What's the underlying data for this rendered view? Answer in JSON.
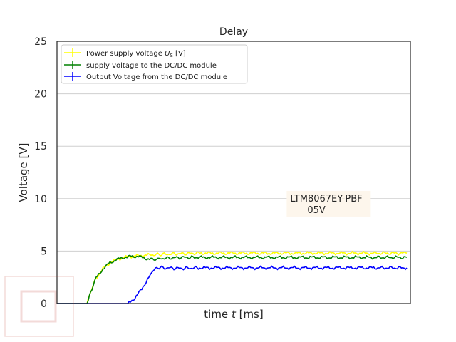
{
  "chart_data": {
    "type": "line",
    "title": "Delay",
    "xlabel_prefix": "time ",
    "xlabel_var": "t",
    "xlabel_suffix": " [ms]",
    "ylabel": "Voltage [V]",
    "xlim": [
      0,
      100
    ],
    "ylim": [
      0,
      25
    ],
    "yticks": [
      0,
      5,
      10,
      15,
      20,
      25
    ],
    "grid": "horizontal",
    "legend_position": "top-left",
    "series": [
      {
        "name_prefix": "Power supply voltage  ",
        "name_var": "U",
        "name_sub": "S",
        "name_suffix": " [V]",
        "color": "#ffff00",
        "x": [
          0,
          8.5,
          9.5,
          11,
          13,
          15,
          17,
          19,
          21,
          23,
          25,
          27,
          30,
          35,
          40,
          50,
          60,
          70,
          80,
          90,
          99
        ],
        "y": [
          0,
          0,
          1.1,
          2.4,
          3.3,
          3.9,
          4.2,
          4.4,
          4.5,
          4.55,
          4.6,
          4.65,
          4.7,
          4.75,
          4.8,
          4.8,
          4.8,
          4.8,
          4.8,
          4.8,
          4.8
        ]
      },
      {
        "name": "supply voltage to the DC/DC module",
        "color": "#008000",
        "x": [
          0,
          8.5,
          9.5,
          11,
          13,
          15,
          17,
          19,
          21,
          23,
          25,
          27,
          30,
          35,
          40,
          50,
          60,
          70,
          80,
          90,
          99
        ],
        "y": [
          0,
          0,
          1.1,
          2.4,
          3.3,
          3.9,
          4.2,
          4.4,
          4.5,
          4.5,
          4.3,
          4.2,
          4.3,
          4.4,
          4.4,
          4.4,
          4.4,
          4.4,
          4.4,
          4.4,
          4.4
        ]
      },
      {
        "name": "Output Voltage from the DC/DC module",
        "color": "#0000ff",
        "x": [
          0,
          20,
          22,
          24,
          26,
          27.5,
          28.5,
          30,
          35,
          40,
          50,
          60,
          70,
          80,
          90,
          99
        ],
        "y": [
          0,
          0,
          0.5,
          1.4,
          2.5,
          3.3,
          3.45,
          3.4,
          3.35,
          3.4,
          3.4,
          3.4,
          3.4,
          3.4,
          3.4,
          3.4
        ]
      }
    ],
    "annotation": {
      "line1": "LTM8067EY-PBF",
      "line2": "05V",
      "x": 66,
      "y": 8.7
    }
  }
}
